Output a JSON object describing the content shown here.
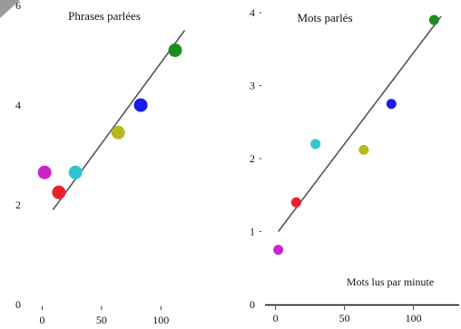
{
  "chart_data": [
    {
      "type": "scatter",
      "title": "Phrases parlées",
      "xlabel": "",
      "ylabel": "",
      "xlim": [
        -5,
        125
      ],
      "ylim": [
        0,
        6
      ],
      "xticks": [
        0,
        50,
        100
      ],
      "yticks": [
        0,
        2,
        4,
        6
      ],
      "xtick_labels": [
        "0",
        "50",
        "100"
      ],
      "ytick_labels": [
        "0",
        "2",
        "4",
        "6"
      ],
      "grid": false,
      "points": [
        {
          "x": 2,
          "y": 2.65,
          "color": "#cc22cc"
        },
        {
          "x": 14,
          "y": 2.25,
          "color": "#e8202a"
        },
        {
          "x": 28,
          "y": 2.65,
          "color": "#2fc5cc"
        },
        {
          "x": 64,
          "y": 3.45,
          "color": "#b8b822"
        },
        {
          "x": 83,
          "y": 4.0,
          "color": "#1a1aee"
        },
        {
          "x": 112,
          "y": 5.1,
          "color": "#1e8c1e"
        }
      ],
      "trendline": {
        "x": [
          9,
          120
        ],
        "y": [
          1.9,
          5.5
        ]
      }
    },
    {
      "type": "scatter",
      "title": "Mots parlés",
      "xlabel": "Mots lus par minute",
      "ylabel": "",
      "xlim": [
        -5,
        120
      ],
      "ylim": [
        0,
        4
      ],
      "xticks": [
        0,
        50,
        100
      ],
      "yticks": [
        0,
        1,
        2,
        3,
        4
      ],
      "xtick_labels": [
        "0",
        "50",
        "100"
      ],
      "ytick_labels": [
        "0",
        "1",
        "2",
        "3",
        "4"
      ],
      "grid": false,
      "points": [
        {
          "x": 2,
          "y": 0.75,
          "color": "#cc22cc"
        },
        {
          "x": 15,
          "y": 1.4,
          "color": "#e8202a"
        },
        {
          "x": 29,
          "y": 2.2,
          "color": "#2fc5cc"
        },
        {
          "x": 64,
          "y": 2.12,
          "color": "#b8b822"
        },
        {
          "x": 84,
          "y": 2.75,
          "color": "#1a1aee"
        },
        {
          "x": 115,
          "y": 3.9,
          "color": "#1e8c1e"
        }
      ],
      "trendline": {
        "x": [
          2,
          120
        ],
        "y": [
          1.0,
          3.95
        ]
      }
    }
  ]
}
